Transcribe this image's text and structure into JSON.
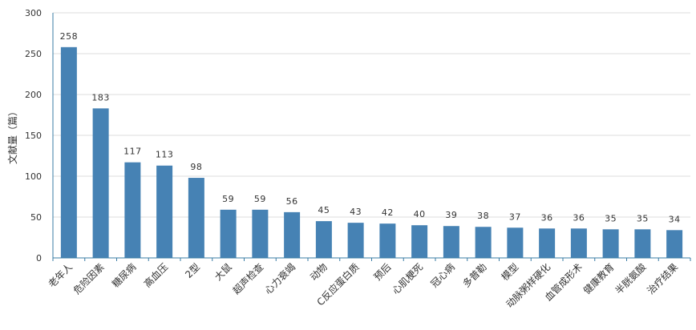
{
  "chart_data": {
    "type": "bar",
    "ylabel": "文献量（篇）",
    "ylim": [
      0,
      300
    ],
    "yticks": [
      0,
      50,
      100,
      150,
      200,
      250,
      300
    ],
    "grid": true,
    "bar_color": "#4682B4",
    "axis_color": "#3A7CA5",
    "grid_color": "#DDDDDD",
    "categories": [
      "老年人",
      "危险因素",
      "糖尿病",
      "高血压",
      "2型",
      "大鼠",
      "超声检查",
      "心力衰竭",
      "动物",
      "C反应蛋白质",
      "预后",
      "心肌梗死",
      "冠心病",
      "多普勒",
      "模型",
      "动脉粥样硬化",
      "血管成形术",
      "健康教育",
      "半胱氨酸",
      "治疗结果"
    ],
    "values": [
      258,
      183,
      117,
      113,
      98,
      59,
      59,
      56,
      45,
      43,
      42,
      40,
      39,
      38,
      37,
      36,
      36,
      35,
      35,
      34
    ]
  }
}
